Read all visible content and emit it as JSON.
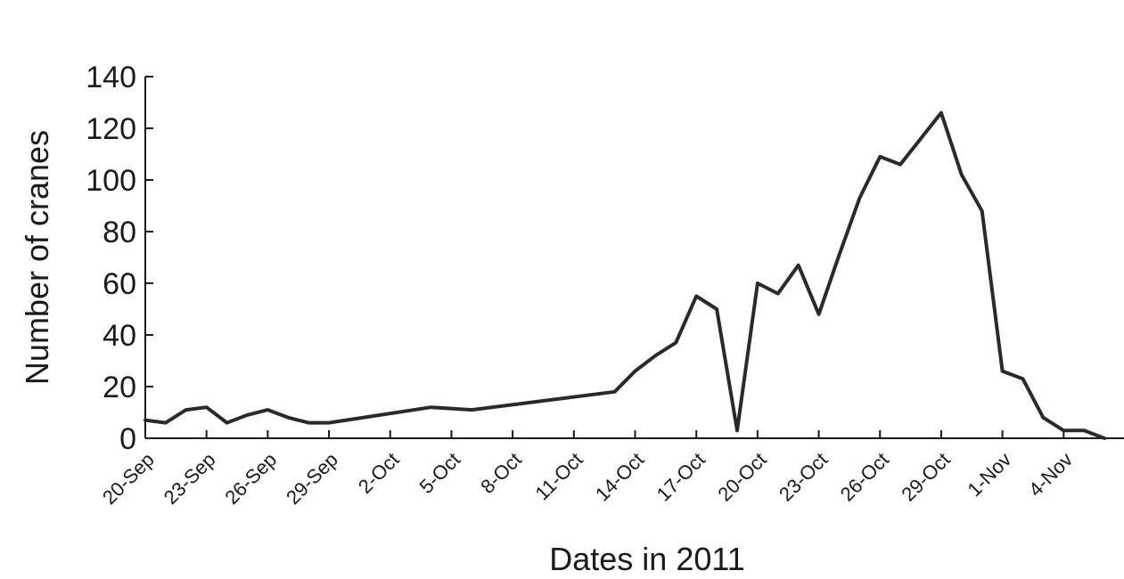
{
  "chart_data": {
    "type": "line",
    "title": "",
    "xlabel": "Dates in 2011",
    "ylabel": "Number of cranes",
    "ylim": [
      0,
      140
    ],
    "yticks": [
      0,
      20,
      40,
      60,
      80,
      100,
      120,
      140
    ],
    "xlim": [
      "2011-09-20",
      "2011-11-07"
    ],
    "xticks": [
      {
        "date": "2011-09-20",
        "label": "20-Sep"
      },
      {
        "date": "2011-09-23",
        "label": "23-Sep"
      },
      {
        "date": "2011-09-26",
        "label": "26-Sep"
      },
      {
        "date": "2011-09-29",
        "label": "29-Sep"
      },
      {
        "date": "2011-10-02",
        "label": "2-Oct"
      },
      {
        "date": "2011-10-05",
        "label": "5-Oct"
      },
      {
        "date": "2011-10-08",
        "label": "8-Oct"
      },
      {
        "date": "2011-10-11",
        "label": "11-Oct"
      },
      {
        "date": "2011-10-14",
        "label": "14-Oct"
      },
      {
        "date": "2011-10-17",
        "label": "17-Oct"
      },
      {
        "date": "2011-10-20",
        "label": "20-Oct"
      },
      {
        "date": "2011-10-23",
        "label": "23-Oct"
      },
      {
        "date": "2011-10-26",
        "label": "26-Oct"
      },
      {
        "date": "2011-10-29",
        "label": "29-Oct"
      },
      {
        "date": "2011-11-01",
        "label": "1-Nov"
      },
      {
        "date": "2011-11-04",
        "label": "4-Nov"
      }
    ],
    "grid": false,
    "legend": "none",
    "line_color": "#2a2a2a",
    "series": [
      {
        "points": [
          [
            "2011-09-20",
            7
          ],
          [
            "2011-09-21",
            6
          ],
          [
            "2011-09-22",
            11
          ],
          [
            "2011-09-23",
            12
          ],
          [
            "2011-09-24",
            6
          ],
          [
            "2011-09-25",
            9
          ],
          [
            "2011-09-26",
            11
          ],
          [
            "2011-09-27",
            8
          ],
          [
            "2011-09-28",
            6
          ],
          [
            "2011-09-29",
            6
          ],
          [
            "2011-10-04",
            12
          ],
          [
            "2011-10-06",
            11
          ],
          [
            "2011-10-13",
            18
          ],
          [
            "2011-10-14",
            26
          ],
          [
            "2011-10-15",
            32
          ],
          [
            "2011-10-16",
            37
          ],
          [
            "2011-10-17",
            55
          ],
          [
            "2011-10-18",
            50
          ],
          [
            "2011-10-19",
            3
          ],
          [
            "2011-10-20",
            60
          ],
          [
            "2011-10-21",
            56
          ],
          [
            "2011-10-22",
            67
          ],
          [
            "2011-10-23",
            48
          ],
          [
            "2011-10-24",
            71
          ],
          [
            "2011-10-25",
            93
          ],
          [
            "2011-10-26",
            109
          ],
          [
            "2011-10-27",
            106
          ],
          [
            "2011-10-28",
            116
          ],
          [
            "2011-10-29",
            126
          ],
          [
            "2011-10-30",
            102
          ],
          [
            "2011-10-31",
            88
          ],
          [
            "2011-11-01",
            26
          ],
          [
            "2011-11-02",
            23
          ],
          [
            "2011-11-03",
            8
          ],
          [
            "2011-11-04",
            3
          ],
          [
            "2011-11-05",
            3
          ],
          [
            "2011-11-06",
            0
          ]
        ]
      }
    ]
  }
}
